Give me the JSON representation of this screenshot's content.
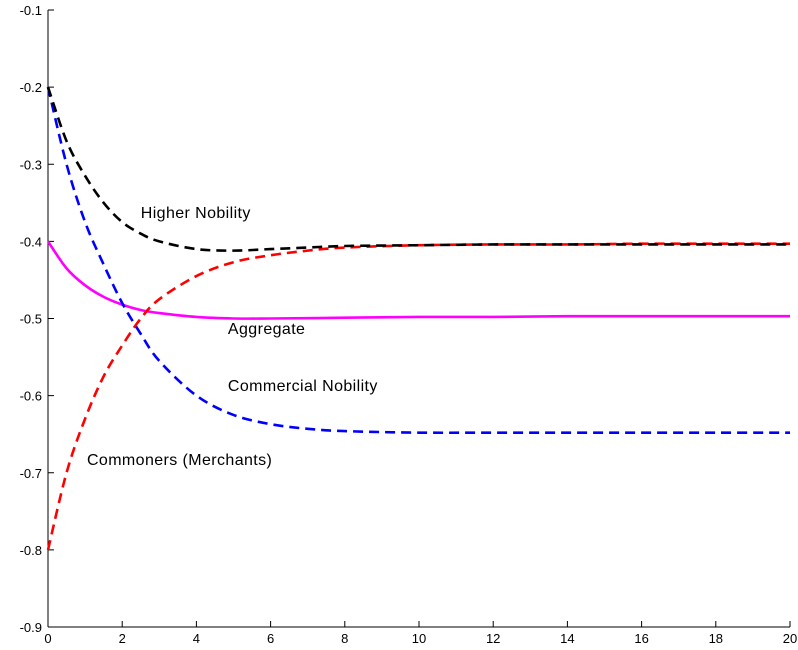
{
  "chart_data": {
    "type": "line",
    "title": "",
    "xlabel": "",
    "ylabel": "",
    "xlim": [
      0,
      20
    ],
    "ylim": [
      -0.9,
      -0.1
    ],
    "x_ticks": [
      0,
      2,
      4,
      6,
      8,
      10,
      12,
      14,
      16,
      18,
      20
    ],
    "y_ticks": [
      -0.1,
      -0.2,
      -0.3,
      -0.4,
      -0.5,
      -0.6,
      -0.7,
      -0.8,
      -0.9
    ],
    "x_tick_labels": [
      "0",
      "2",
      "4",
      "6",
      "8",
      "10",
      "12",
      "14",
      "16",
      "18",
      "20"
    ],
    "y_tick_labels": [
      "-0.1",
      "-0.2",
      "-0.3",
      "-0.4",
      "-0.5",
      "-0.6",
      "-0.7",
      "-0.8",
      "-0.9"
    ],
    "grid": false,
    "series": [
      {
        "name": "Higher Nobility",
        "color": "#000000",
        "style": "dashed",
        "x": [
          0,
          0.5,
          1,
          1.5,
          2,
          2.5,
          3,
          4,
          5,
          6,
          7,
          8,
          10,
          12,
          14,
          16,
          18,
          20
        ],
        "y": [
          -0.2,
          -0.27,
          -0.315,
          -0.35,
          -0.375,
          -0.39,
          -0.4,
          -0.41,
          -0.412,
          -0.41,
          -0.408,
          -0.406,
          -0.405,
          -0.404,
          -0.404,
          -0.404,
          -0.404,
          -0.404
        ]
      },
      {
        "name": "Commercial Nobility",
        "color": "#0000ff",
        "style": "dashed",
        "x": [
          0,
          0.5,
          1,
          1.5,
          2,
          2.5,
          3,
          4,
          5,
          6,
          7,
          8,
          10,
          12,
          14,
          16,
          18,
          20
        ],
        "y": [
          -0.2,
          -0.3,
          -0.375,
          -0.43,
          -0.48,
          -0.52,
          -0.555,
          -0.6,
          -0.625,
          -0.637,
          -0.643,
          -0.646,
          -0.648,
          -0.648,
          -0.648,
          -0.648,
          -0.648,
          -0.648
        ]
      },
      {
        "name": "Aggregate",
        "color": "#ff00ff",
        "style": "solid",
        "x": [
          0,
          0.5,
          1,
          1.5,
          2,
          2.5,
          3,
          4,
          5,
          6,
          8,
          10,
          12,
          14,
          16,
          18,
          20
        ],
        "y": [
          -0.4,
          -0.435,
          -0.457,
          -0.472,
          -0.482,
          -0.489,
          -0.493,
          -0.498,
          -0.5,
          -0.5,
          -0.499,
          -0.498,
          -0.498,
          -0.497,
          -0.497,
          -0.497,
          -0.497
        ]
      },
      {
        "name": "Commoners (Merchants)",
        "color": "#ff0000",
        "style": "dashed",
        "x": [
          0,
          0.5,
          1,
          1.5,
          2,
          2.5,
          3,
          4,
          5,
          6,
          7,
          8,
          10,
          12,
          14,
          16,
          18,
          20
        ],
        "y": [
          -0.8,
          -0.7,
          -0.63,
          -0.575,
          -0.535,
          -0.5,
          -0.475,
          -0.445,
          -0.427,
          -0.418,
          -0.412,
          -0.408,
          -0.405,
          -0.404,
          -0.404,
          -0.403,
          -0.403,
          -0.403
        ]
      }
    ],
    "annotations": [
      {
        "text": "Higher Nobility",
        "x": 2.5,
        "y": -0.37
      },
      {
        "text": "Aggregate",
        "x": 4.85,
        "y": -0.52
      },
      {
        "text": "Commercial Nobility",
        "x": 4.85,
        "y": -0.594
      },
      {
        "text": "Commoners (Merchants)",
        "x": 1.05,
        "y": -0.69
      }
    ]
  }
}
